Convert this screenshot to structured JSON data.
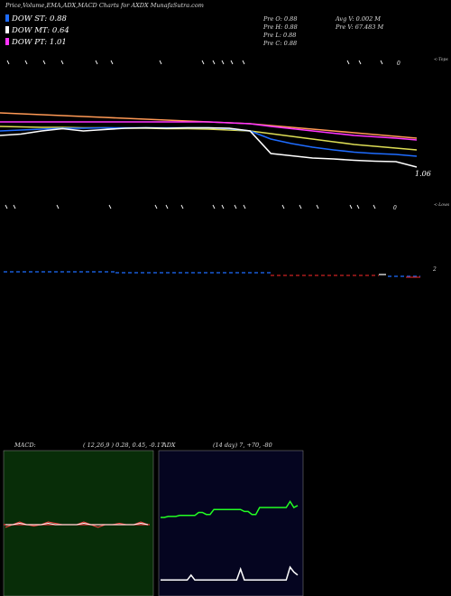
{
  "header": {
    "title": "Price,Volume,EMA,ADX,MACD Charts for AXDX  MunafaSutra.com"
  },
  "legend": [
    {
      "label": "DOW ST: 0.88",
      "color": "#1e6cff"
    },
    {
      "label": "DOW MT: 0.64",
      "color": "#ffffff"
    },
    {
      "label": "DOW PT: 1.01",
      "color": "#ff33ff"
    }
  ],
  "stats": {
    "prev_open": "Pre   O: 0.88",
    "prev_high": "Pre   H: 0.88",
    "prev_low": "Pre   L: 0.88",
    "prev_close": "Pre   C: 0.88",
    "avg_volume": "Avg V: 0.002  M",
    "prev_volume": "Pre   V: 67.483  M"
  },
  "price_label": "1.06",
  "top_label": "<-Tops",
  "lows_label": "<-Lows",
  "zero_mark_label": "0",
  "zero_mark_label2": "0",
  "macd_side_label": "2",
  "macd_panel": {
    "label": "MACD:",
    "params": "( 12,26,9 ) 0.28,  0.45,  -0.17"
  },
  "adx_panel": {
    "label": "ADX",
    "params": "(14  day) 7,  +70,  -80"
  },
  "colors": {
    "macd_bg": "#082d08",
    "adx_bg": "#050520",
    "green": "#22ff22"
  },
  "chart_data": [
    {
      "type": "line",
      "title": "AXDX price with EMAs",
      "y_label": "1.06",
      "series": [
        {
          "color": "#ff9955",
          "values": [
            1.18,
            1.178,
            1.176,
            1.174,
            1.172,
            1.17,
            1.168,
            1.166,
            1.164,
            1.162,
            1.16,
            1.158,
            1.156,
            1.152,
            1.148,
            1.144,
            1.14,
            1.136,
            1.132,
            1.128,
            1.124
          ]
        },
        {
          "color": "#ff33ff",
          "values": [
            1.16,
            1.16,
            1.16,
            1.16,
            1.16,
            1.16,
            1.16,
            1.16,
            1.16,
            1.16,
            1.16,
            1.158,
            1.156,
            1.15,
            1.145,
            1.14,
            1.135,
            1.13,
            1.127,
            1.124,
            1.12
          ]
        },
        {
          "color": "#dddd55",
          "values": [
            1.15,
            1.149,
            1.148,
            1.148,
            1.147,
            1.147,
            1.146,
            1.146,
            1.145,
            1.145,
            1.144,
            1.142,
            1.14,
            1.134,
            1.128,
            1.122,
            1.116,
            1.11,
            1.106,
            1.102,
            1.098
          ]
        },
        {
          "color": "#1e6cff",
          "values": [
            1.14,
            1.142,
            1.144,
            1.146,
            1.146,
            1.147,
            1.147,
            1.147,
            1.147,
            1.147,
            1.147,
            1.145,
            1.14,
            1.122,
            1.112,
            1.104,
            1.098,
            1.093,
            1.09,
            1.088,
            1.084
          ]
        },
        {
          "color": "#ffffff",
          "values": [
            1.13,
            1.133,
            1.14,
            1.145,
            1.14,
            1.143,
            1.146,
            1.147,
            1.146,
            1.147,
            1.147,
            1.146,
            1.14,
            1.09,
            1.085,
            1.08,
            1.078,
            1.075,
            1.073,
            1.072,
            1.06
          ]
        }
      ]
    },
    {
      "type": "line",
      "title": "MACD",
      "series": [
        {
          "color": "#ff4444",
          "values": [
            -0.01,
            0.0,
            0.01,
            0.0,
            -0.005,
            0.0,
            0.01,
            0.005,
            0.0,
            0.0,
            0.0,
            0.01,
            0.0,
            -0.01,
            0.0,
            0.0,
            0.005,
            0.0,
            0.0,
            0.01,
            0.0
          ]
        },
        {
          "color": "#ffffff",
          "values": [
            0.0,
            0.0,
            0.005,
            0.0,
            0.0,
            0.0,
            0.005,
            0.0,
            0.0,
            0.0,
            0.0,
            0.005,
            0.0,
            0.0,
            0.0,
            0.0,
            0.0,
            0.0,
            0.0,
            0.005,
            0.0
          ]
        }
      ]
    },
    {
      "type": "line",
      "title": "ADX",
      "series": [
        {
          "color": "#ffffff",
          "values": [
            7,
            7,
            7,
            7,
            7,
            7,
            7,
            7,
            12,
            7,
            7,
            7,
            7,
            7,
            7,
            7,
            7,
            7,
            7,
            7,
            7,
            18,
            7,
            7,
            7,
            7,
            7,
            7,
            7,
            7,
            7,
            7,
            7,
            7,
            20,
            15,
            12
          ]
        },
        {
          "color": "#22ff22",
          "values": [
            70,
            70,
            71,
            71,
            71,
            72,
            72,
            72,
            72,
            72,
            75,
            75,
            73,
            73,
            78,
            78,
            78,
            78,
            78,
            78,
            78,
            78,
            76,
            76,
            73,
            73,
            80,
            80,
            80,
            80,
            80,
            80,
            80,
            80,
            86,
            80,
            82
          ]
        }
      ]
    }
  ]
}
